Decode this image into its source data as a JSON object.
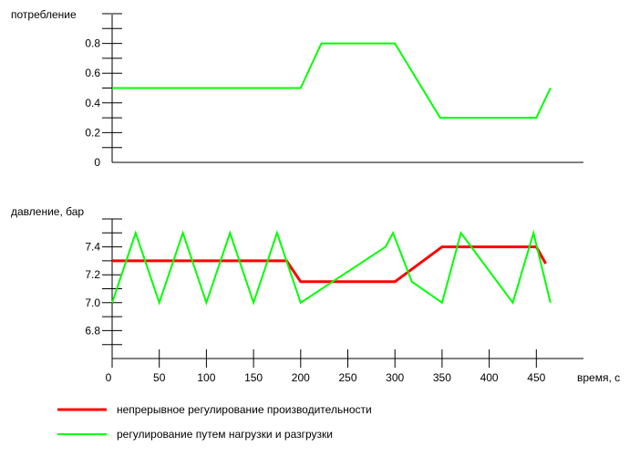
{
  "chart_data": [
    {
      "type": "line",
      "ylabel": "потребление",
      "ylim": [
        0,
        1.0
      ],
      "yticks": [
        0,
        0.2,
        0.4,
        0.6,
        0.8
      ],
      "ytick_labels": [
        "0",
        "0.2",
        "0.4",
        "0.6",
        "0.8"
      ],
      "xlim": [
        0,
        500
      ],
      "series": [
        {
          "color": "#00ff00",
          "points": [
            [
              0,
              0.5
            ],
            [
              200,
              0.5
            ],
            [
              222,
              0.8
            ],
            [
              300,
              0.8
            ],
            [
              348,
              0.3
            ],
            [
              450,
              0.3
            ],
            [
              465,
              0.5
            ]
          ]
        }
      ]
    },
    {
      "type": "line",
      "ylabel": "давление, бар",
      "xlabel": "время, с",
      "ylim": [
        6.6,
        7.6
      ],
      "yticks": [
        6.8,
        7.0,
        7.2,
        7.4
      ],
      "ytick_labels": [
        "6.8",
        "7.0",
        "7.2",
        "7.4"
      ],
      "xlim": [
        0,
        500
      ],
      "xticks": [
        0,
        50,
        100,
        150,
        200,
        250,
        300,
        350,
        400,
        450
      ],
      "xtick_labels": [
        "0",
        "50",
        "100",
        "150",
        "200",
        "250",
        "300",
        "350",
        "400",
        "450"
      ],
      "series": [
        {
          "name": "непрерывное регулирование производительности",
          "color": "#ff0000",
          "points": [
            [
              0,
              7.3
            ],
            [
              185,
              7.3
            ],
            [
              200,
              7.15
            ],
            [
              300,
              7.15
            ],
            [
              350,
              7.4
            ],
            [
              450,
              7.4
            ],
            [
              460,
              7.28
            ]
          ]
        },
        {
          "name": "регулирование путем нагрузки и разгрузки",
          "color": "#00ff00",
          "points": [
            [
              0,
              7.0
            ],
            [
              25,
              7.5
            ],
            [
              50,
              7.0
            ],
            [
              75,
              7.5
            ],
            [
              100,
              7.0
            ],
            [
              125,
              7.5
            ],
            [
              150,
              7.0
            ],
            [
              175,
              7.5
            ],
            [
              200,
              7.0
            ],
            [
              290,
              7.4
            ],
            [
              298,
              7.5
            ],
            [
              318,
              7.15
            ],
            [
              350,
              7.0
            ],
            [
              370,
              7.5
            ],
            [
              425,
              7.0
            ],
            [
              447,
              7.5
            ],
            [
              465,
              7.0
            ]
          ]
        }
      ]
    }
  ]
}
